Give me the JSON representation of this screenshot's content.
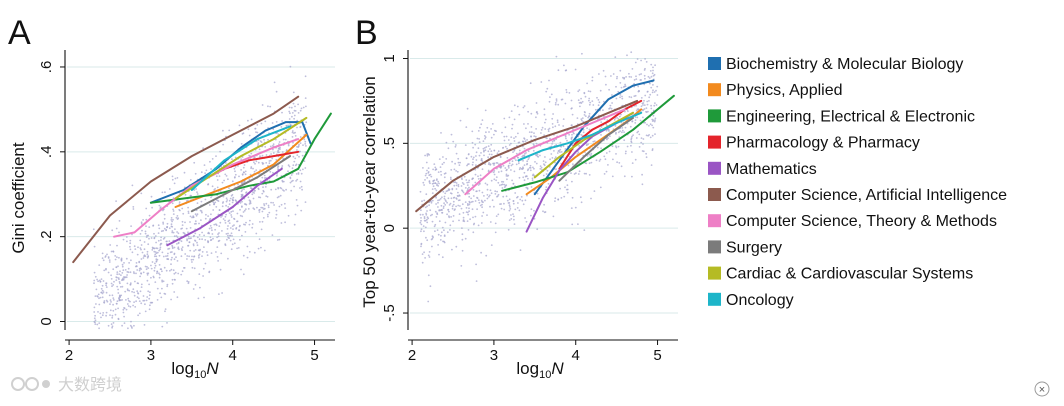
{
  "figure": {
    "watermark": "大数跨境",
    "close_glyph": "×"
  },
  "colors": {
    "scatter": "#a8a8cf",
    "grid": "#d9eaea"
  },
  "legend": [
    {
      "label": "Biochemistry & Molecular Biology",
      "color": "#1f6fb0"
    },
    {
      "label": "Physics, Applied",
      "color": "#f28a1e"
    },
    {
      "label": "Engineering, Electrical & Electronic",
      "color": "#1f9a3a"
    },
    {
      "label": "Pharmacology & Pharmacy",
      "color": "#e4242b"
    },
    {
      "label": "Mathematics",
      "color": "#9a55c4"
    },
    {
      "label": "Computer Science, Artificial Intelligence",
      "color": "#8c5a4e"
    },
    {
      "label": "Computer Science, Theory & Methods",
      "color": "#ee7fc6"
    },
    {
      "label": "Surgery",
      "color": "#7b7b7b"
    },
    {
      "label": "Cardiac & Cardiovascular Systems",
      "color": "#b5bb24"
    },
    {
      "label": "Oncology",
      "color": "#1db5c9"
    }
  ],
  "chart_data": [
    {
      "panel": "A",
      "type": "scatter+line",
      "xlabel_base": "log",
      "xlabel_sub": "10",
      "xlabel_var": "N",
      "ylabel": "Gini coefficient",
      "xlim": [
        1.95,
        5.25
      ],
      "ylim": [
        -0.02,
        0.64
      ],
      "xticks": [
        2,
        3,
        4,
        5
      ],
      "xtick_labels": [
        "2",
        "3",
        "4",
        "5"
      ],
      "yticks": [
        0,
        0.2,
        0.4,
        0.6
      ],
      "ytick_labels": [
        "0",
        ".2",
        ".4",
        ".6"
      ],
      "cloud": {
        "x_min": 2.3,
        "x_max": 4.9,
        "slope": 0.155,
        "intercept": -0.33,
        "spread": 0.07,
        "n": 1400
      },
      "series": [
        {
          "name": "Biochemistry & Molecular Biology",
          "x": [
            3.0,
            3.4,
            3.8,
            4.1,
            4.4,
            4.65,
            4.85,
            4.95
          ],
          "y": [
            0.28,
            0.31,
            0.36,
            0.41,
            0.45,
            0.47,
            0.47,
            0.42
          ]
        },
        {
          "name": "Physics, Applied",
          "x": [
            3.3,
            3.7,
            4.1,
            4.5,
            4.9
          ],
          "y": [
            0.27,
            0.3,
            0.33,
            0.37,
            0.44
          ]
        },
        {
          "name": "Engineering, Electrical & Electronic",
          "x": [
            3.0,
            3.4,
            3.8,
            4.2,
            4.5,
            4.8,
            5.0,
            5.2
          ],
          "y": [
            0.28,
            0.29,
            0.3,
            0.32,
            0.33,
            0.36,
            0.43,
            0.49
          ]
        },
        {
          "name": "Pharmacology & Pharmacy",
          "x": [
            3.6,
            3.9,
            4.2,
            4.5,
            4.8
          ],
          "y": [
            0.33,
            0.36,
            0.38,
            0.39,
            0.4
          ]
        },
        {
          "name": "Mathematics",
          "x": [
            3.2,
            3.6,
            4.0,
            4.3,
            4.6
          ],
          "y": [
            0.18,
            0.22,
            0.27,
            0.32,
            0.36
          ]
        },
        {
          "name": "Computer Science, Artificial Intelligence",
          "x": [
            2.05,
            2.5,
            3.0,
            3.5,
            4.0,
            4.5,
            4.8
          ],
          "y": [
            0.14,
            0.25,
            0.33,
            0.39,
            0.44,
            0.49,
            0.53
          ]
        },
        {
          "name": "Computer Science, Theory & Methods",
          "x": [
            2.55,
            2.8,
            3.1,
            3.5,
            4.0,
            4.5,
            4.8
          ],
          "y": [
            0.2,
            0.21,
            0.26,
            0.32,
            0.37,
            0.41,
            0.43
          ]
        },
        {
          "name": "Surgery",
          "x": [
            3.5,
            3.9,
            4.3,
            4.7
          ],
          "y": [
            0.26,
            0.3,
            0.34,
            0.39
          ]
        },
        {
          "name": "Cardiac & Cardiovascular Systems",
          "x": [
            3.3,
            3.7,
            4.1,
            4.5,
            4.9
          ],
          "y": [
            0.29,
            0.34,
            0.39,
            0.43,
            0.48
          ]
        },
        {
          "name": "Oncology",
          "x": [
            3.5,
            3.9,
            4.3,
            4.7
          ],
          "y": [
            0.31,
            0.38,
            0.43,
            0.46
          ]
        }
      ]
    },
    {
      "panel": "B",
      "type": "scatter+line",
      "xlabel_base": "log",
      "xlabel_sub": "10",
      "xlabel_var": "N",
      "ylabel": "Top 50 year-to-year correlation",
      "xlim": [
        1.95,
        5.25
      ],
      "ylim": [
        -0.6,
        1.05
      ],
      "xticks": [
        2,
        3,
        4,
        5
      ],
      "xtick_labels": [
        "2",
        "3",
        "4",
        "5"
      ],
      "yticks": [
        -0.5,
        0,
        0.5,
        1
      ],
      "ytick_labels": [
        "-.5",
        "0",
        ".5",
        "1"
      ],
      "cloud": {
        "x_min": 2.1,
        "x_max": 5.0,
        "slope": 0.22,
        "intercept": -0.35,
        "spread": 0.17,
        "n": 1400
      },
      "series": [
        {
          "name": "Biochemistry & Molecular Biology",
          "x": [
            3.5,
            3.8,
            4.1,
            4.4,
            4.7,
            4.95
          ],
          "y": [
            0.2,
            0.4,
            0.6,
            0.76,
            0.84,
            0.87
          ]
        },
        {
          "name": "Physics, Applied",
          "x": [
            3.4,
            3.7,
            4.0,
            4.3,
            4.6,
            4.8
          ],
          "y": [
            0.2,
            0.3,
            0.42,
            0.52,
            0.62,
            0.7
          ]
        },
        {
          "name": "Engineering, Electrical & Electronic",
          "x": [
            3.1,
            3.5,
            3.9,
            4.3,
            4.7,
            5.2
          ],
          "y": [
            0.22,
            0.27,
            0.33,
            0.45,
            0.58,
            0.78
          ]
        },
        {
          "name": "Pharmacology & Pharmacy",
          "x": [
            3.8,
            4.0,
            4.2,
            4.4,
            4.6,
            4.8
          ],
          "y": [
            0.35,
            0.5,
            0.58,
            0.63,
            0.7,
            0.75
          ]
        },
        {
          "name": "Mathematics",
          "x": [
            3.4,
            3.6,
            3.8,
            4.0,
            4.2,
            4.5,
            4.7
          ],
          "y": [
            -0.02,
            0.18,
            0.34,
            0.45,
            0.54,
            0.62,
            0.68
          ]
        },
        {
          "name": "Computer Science, Artificial Intelligence",
          "x": [
            2.05,
            2.5,
            3.0,
            3.5,
            4.0,
            4.4,
            4.75
          ],
          "y": [
            0.1,
            0.28,
            0.42,
            0.52,
            0.6,
            0.68,
            0.75
          ]
        },
        {
          "name": "Computer Science, Theory & Methods",
          "x": [
            2.65,
            3.0,
            3.4,
            3.8,
            4.2,
            4.6
          ],
          "y": [
            0.2,
            0.35,
            0.46,
            0.54,
            0.62,
            0.7
          ]
        },
        {
          "name": "Surgery",
          "x": [
            3.8,
            4.1,
            4.4,
            4.7
          ],
          "y": [
            0.28,
            0.42,
            0.55,
            0.65
          ]
        },
        {
          "name": "Cardiac & Cardiovascular Systems",
          "x": [
            3.5,
            3.8,
            4.1,
            4.4,
            4.7
          ],
          "y": [
            0.3,
            0.42,
            0.52,
            0.6,
            0.68
          ]
        },
        {
          "name": "Oncology",
          "x": [
            3.3,
            3.6,
            3.9,
            4.2,
            4.5,
            4.8
          ],
          "y": [
            0.4,
            0.46,
            0.5,
            0.55,
            0.62,
            0.68
          ]
        }
      ]
    }
  ]
}
